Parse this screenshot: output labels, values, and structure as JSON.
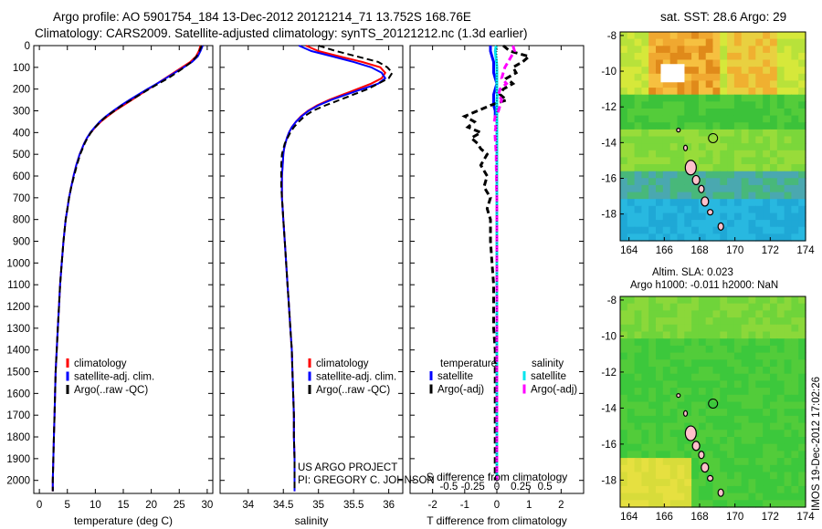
{
  "title_line1": "Argo profile: AO 5901754_184 13-Dec-2012 20121214_71 13.752S 168.76E",
  "title_line2": "Climatology: CARS2009. Satellite-adjusted climatology: synTS_20121212.nc (1.3d earlier)",
  "side_label": "IMOS 19-Dec-2012 17:02:26",
  "project_line1": "US ARGO PROJECT",
  "project_line2": "PI: GREGORY C. JOHNSON",
  "colors": {
    "climatology": "#ff0000",
    "satellite": "#0000ff",
    "argo": "#000000",
    "sal_satellite": "#00e5ee",
    "sal_argo": "#ff00ff"
  },
  "chart_data": [
    {
      "type": "line",
      "name": "temperature-panel",
      "xlabel": "temperature (deg C)",
      "ylabel": "",
      "xlim": [
        -1,
        31
      ],
      "ylim": [
        2060,
        0
      ],
      "xticks": [
        0,
        5,
        10,
        15,
        20,
        25,
        30
      ],
      "yticks": [
        0,
        100,
        200,
        300,
        400,
        500,
        600,
        700,
        800,
        900,
        1000,
        1100,
        1200,
        1300,
        1400,
        1500,
        1600,
        1700,
        1800,
        1900,
        2000
      ],
      "depth": [
        0,
        25,
        50,
        75,
        100,
        125,
        150,
        175,
        200,
        225,
        250,
        275,
        300,
        325,
        350,
        375,
        400,
        425,
        450,
        475,
        500,
        550,
        600,
        650,
        700,
        750,
        800,
        900,
        1000,
        1100,
        1200,
        1300,
        1400,
        1500,
        1600,
        1700,
        1800,
        1900,
        2000,
        2050
      ],
      "series": [
        {
          "name": "climatology",
          "values": [
            28.8,
            28.5,
            28.0,
            27.0,
            25.5,
            24.0,
            22.5,
            21.0,
            19.5,
            18.0,
            16.5,
            15.0,
            13.5,
            12.2,
            11.0,
            10.0,
            9.2,
            8.5,
            8.0,
            7.6,
            7.2,
            6.6,
            6.1,
            5.7,
            5.3,
            5.0,
            4.7,
            4.3,
            4.0,
            3.7,
            3.5,
            3.3,
            3.1,
            2.9,
            2.8,
            2.7,
            2.6,
            2.5,
            2.4,
            2.4
          ]
        },
        {
          "name": "satellite-adj. clim.",
          "values": [
            29.2,
            28.8,
            28.3,
            27.3,
            25.8,
            24.2,
            22.6,
            21.0,
            19.3,
            17.7,
            16.1,
            14.6,
            13.2,
            11.9,
            10.8,
            9.9,
            9.1,
            8.5,
            8.0,
            7.6,
            7.2,
            6.6,
            6.1,
            5.7,
            5.3,
            5.0,
            4.7,
            4.3,
            4.0,
            3.7,
            3.5,
            3.3,
            3.1,
            2.9,
            2.8,
            2.7,
            2.6,
            2.5,
            2.4,
            2.4
          ]
        },
        {
          "name": "Argo(..raw -QC)",
          "values": [
            29.0,
            28.6,
            28.1,
            27.2,
            25.9,
            24.5,
            23.0,
            21.3,
            19.6,
            18.0,
            16.4,
            14.8,
            13.4,
            12.0,
            10.9,
            10.0,
            9.2,
            8.6,
            8.1,
            7.7,
            7.3,
            6.7,
            6.2,
            5.7,
            5.3,
            5.0,
            4.7,
            4.3,
            4.0,
            3.7,
            3.5,
            3.3,
            3.1,
            2.9,
            2.8,
            2.7,
            2.6,
            2.5,
            2.4,
            2.4
          ]
        }
      ],
      "legend": "lower-right"
    },
    {
      "type": "line",
      "name": "salinity-panel",
      "xlabel": "salinity",
      "ylabel": "",
      "xlim": [
        33.6,
        36.2
      ],
      "ylim": [
        2060,
        0
      ],
      "xticks": [
        34,
        34.5,
        35,
        35.5,
        36
      ],
      "depth": [
        0,
        25,
        50,
        75,
        100,
        125,
        150,
        175,
        200,
        225,
        250,
        275,
        300,
        325,
        350,
        375,
        400,
        425,
        450,
        475,
        500,
        550,
        600,
        650,
        700,
        750,
        800,
        900,
        1000,
        1100,
        1200,
        1300,
        1400,
        1500,
        1600,
        1700,
        1800,
        1900,
        2000,
        2050
      ],
      "series": [
        {
          "name": "climatology",
          "values": [
            34.82,
            35.0,
            35.3,
            35.62,
            35.88,
            35.95,
            35.9,
            35.75,
            35.55,
            35.35,
            35.15,
            34.98,
            34.85,
            34.75,
            34.68,
            34.62,
            34.58,
            34.55,
            34.53,
            34.51,
            34.5,
            34.49,
            34.48,
            34.48,
            34.48,
            34.49,
            34.5,
            34.52,
            34.54,
            34.56,
            34.58,
            34.6,
            34.62,
            34.63,
            34.64,
            34.65,
            34.65,
            34.66,
            34.66,
            34.66
          ]
        },
        {
          "name": "satellite-adj. clim.",
          "values": [
            34.72,
            34.9,
            35.2,
            35.5,
            35.75,
            35.9,
            35.95,
            35.85,
            35.62,
            35.4,
            35.18,
            35.0,
            34.86,
            34.76,
            34.68,
            34.62,
            34.58,
            34.55,
            34.53,
            34.51,
            34.5,
            34.49,
            34.48,
            34.48,
            34.48,
            34.49,
            34.5,
            34.52,
            34.54,
            34.56,
            34.58,
            34.6,
            34.62,
            34.63,
            34.64,
            34.65,
            34.65,
            34.66,
            34.66,
            34.66
          ]
        },
        {
          "name": "Argo(..raw -QC)",
          "values": [
            35.0,
            35.25,
            35.55,
            35.85,
            35.98,
            36.05,
            36.0,
            35.85,
            35.7,
            35.5,
            35.3,
            35.1,
            34.92,
            34.8,
            34.72,
            34.65,
            34.6,
            34.56,
            34.52,
            34.5,
            34.48,
            34.47,
            34.47,
            34.47,
            34.48,
            34.49,
            34.5,
            34.52,
            34.54,
            34.56,
            34.58,
            34.6,
            34.62,
            34.63,
            34.64,
            34.65,
            34.65,
            34.66,
            34.66,
            34.66
          ]
        }
      ],
      "legend": "lower-right"
    },
    {
      "type": "line",
      "name": "difference-panel",
      "xlabel": "T difference from climatology",
      "xlabel_top": "S difference from climatology",
      "xlim": [
        -2.7,
        2.7
      ],
      "ylim": [
        2060,
        0
      ],
      "xticks": [
        -2,
        -1,
        0,
        1,
        2
      ],
      "xticks_s": [
        -0.5,
        -0.25,
        0,
        0.25,
        0.5
      ],
      "depth": [
        0,
        25,
        50,
        75,
        100,
        125,
        150,
        175,
        200,
        225,
        250,
        275,
        300,
        325,
        350,
        375,
        400,
        425,
        450,
        475,
        500,
        550,
        600,
        650,
        700,
        750,
        800,
        900,
        1000,
        1100,
        1200,
        1300,
        1400,
        1500,
        1600,
        1700,
        1800,
        1900,
        2000
      ],
      "series": [
        {
          "name": "temperature satellite",
          "values": [
            -0.2,
            -0.2,
            -0.15,
            -0.1,
            -0.1,
            -0.1,
            -0.05,
            0,
            -0.05,
            -0.1,
            -0.1,
            -0.1,
            -0.05,
            -0.05,
            0,
            0,
            0,
            0,
            0,
            0,
            0,
            0,
            0,
            0,
            0,
            0,
            0,
            0,
            0,
            0,
            0,
            0,
            0,
            0,
            0,
            0,
            0,
            0,
            0
          ]
        },
        {
          "name": "temperature Argo(-adj)",
          "values": [
            0.2,
            0.4,
            1.0,
            0.8,
            0.5,
            0.6,
            0.3,
            0.5,
            0.2,
            0.1,
            0.3,
            -0.2,
            -0.6,
            -1.0,
            -0.7,
            -0.9,
            -0.5,
            -0.8,
            -0.6,
            -0.5,
            -0.3,
            -0.5,
            -0.3,
            -0.4,
            -0.2,
            -0.3,
            -0.2,
            -0.2,
            -0.15,
            -0.1,
            -0.1,
            -0.1,
            -0.05,
            -0.05,
            -0.05,
            -0.05,
            -0.05,
            -0.05,
            -0.05
          ]
        },
        {
          "name": "salinity satellite",
          "values": [
            -0.02,
            -0.05,
            -0.03,
            -0.01,
            0,
            0,
            0,
            0,
            0,
            0.01,
            0,
            0,
            0,
            0,
            0,
            0,
            0,
            0,
            0,
            0,
            0,
            0,
            0,
            0,
            0,
            0,
            0,
            0,
            0,
            0,
            0,
            0,
            0,
            0,
            0,
            0,
            0,
            0,
            0
          ]
        },
        {
          "name": "salinity Argo(-adj)",
          "values": [
            0.5,
            0.55,
            0.45,
            0.35,
            0.25,
            0.2,
            0.15,
            0.3,
            0.1,
            0.05,
            0.15,
            0.1,
            0.05,
            -0.05,
            -0.08,
            -0.03,
            -0.06,
            -0.05,
            -0.04,
            -0.03,
            -0.02,
            -0.02,
            -0.01,
            -0.01,
            0,
            0,
            0,
            0,
            0,
            0,
            0,
            0,
            0,
            0,
            0,
            0,
            0,
            0,
            0
          ]
        }
      ],
      "legend_headers": [
        "temperature",
        "salinity"
      ]
    }
  ],
  "maps": {
    "sst": {
      "title": "sat. SST: 28.6 Argo: 29",
      "xticks": [
        164,
        166,
        168,
        170,
        172,
        174
      ],
      "yticks": [
        -8,
        -10,
        -12,
        -14,
        -16,
        -18
      ],
      "xlim": [
        163.5,
        174
      ],
      "ylim": [
        -19.5,
        -7.8
      ]
    },
    "sla": {
      "title_line1": "Altim. SLA: 0.023",
      "title_line2": "Argo h1000: -0.011 h2000: NaN",
      "xticks": [
        164,
        166,
        168,
        170,
        172,
        174
      ],
      "yticks": [
        -8,
        -10,
        -12,
        -14,
        -16,
        -18
      ],
      "xlim": [
        163.5,
        174
      ],
      "ylim": [
        -19.5,
        -7.8
      ]
    },
    "argo_position": {
      "lon": 168.76,
      "lat": -13.75
    }
  }
}
